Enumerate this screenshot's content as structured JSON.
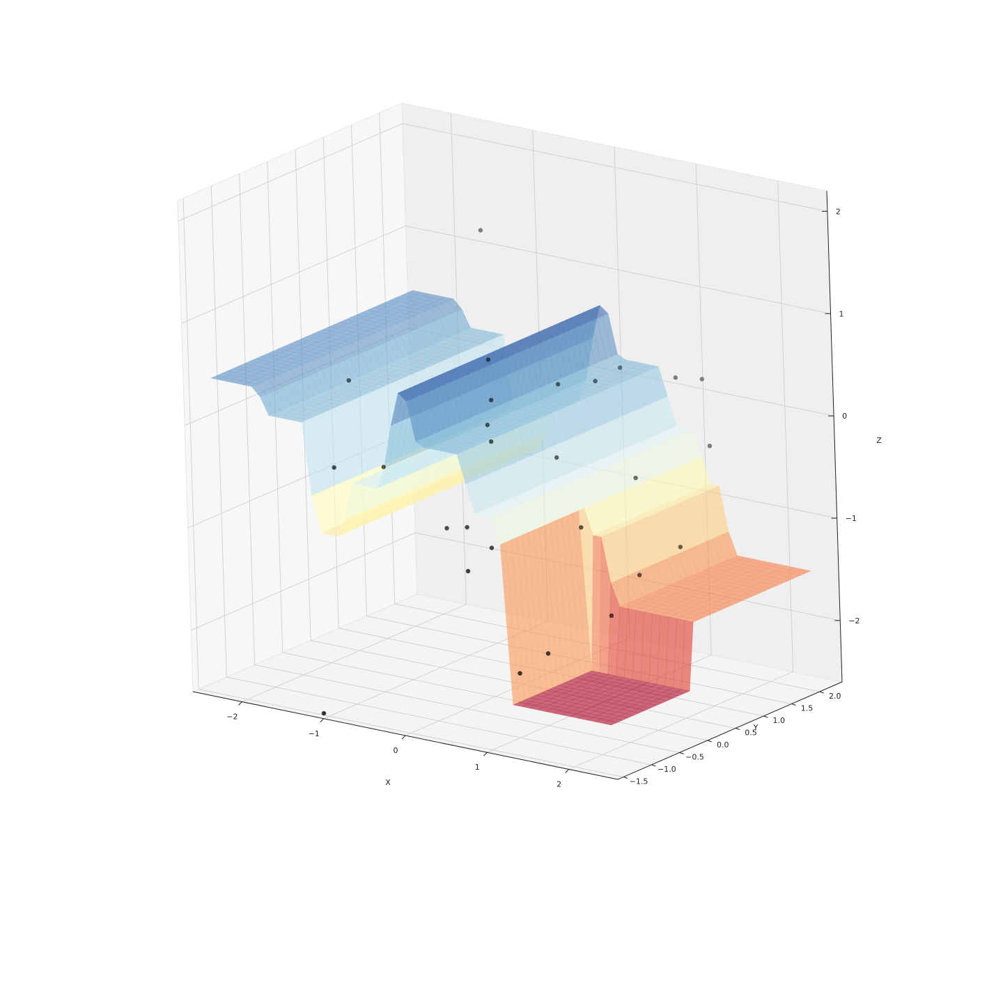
{
  "chart_data": {
    "type": "surface3d",
    "title": "",
    "xlabel": "X",
    "ylabel": "Y",
    "zlabel": "Z",
    "xlim": [
      -2.6,
      2.6
    ],
    "ylim": [
      -1.6,
      2.4
    ],
    "zlim": [
      -2.6,
      2.2
    ],
    "x_ticks": [
      -2,
      -1,
      0,
      1,
      2
    ],
    "y_ticks": [
      -1.5,
      -1.0,
      -0.5,
      0.0,
      0.5,
      1.0,
      1.5,
      2.0
    ],
    "z_ticks": [
      -2,
      -1,
      0,
      1,
      2
    ],
    "x_tick_labels": [
      "−2",
      "−1",
      "0",
      "1",
      "2"
    ],
    "y_tick_labels": [
      "−1.5",
      "−1.0",
      "−0.5",
      "0.0",
      "0.5",
      "1.0",
      "1.5",
      "2.0"
    ],
    "z_tick_labels": [
      "−2",
      "−1",
      "0",
      "1",
      "2"
    ],
    "grid": true,
    "colormap": "RdYlBu",
    "surface_alpha": 0.6,
    "surface": {
      "x_range": [
        -2.4,
        2.4
      ],
      "y_range": [
        -1.4,
        2.2
      ],
      "z_profile": [
        {
          "x": -2.4,
          "z": 0.45
        },
        {
          "x": -1.85,
          "z": 0.45
        },
        {
          "x": -1.7,
          "z": 0.2
        },
        {
          "x": -1.3,
          "z": 0.2
        },
        {
          "x": -1.15,
          "z": -0.85
        },
        {
          "x": -0.85,
          "z": -0.85
        },
        {
          "x": -0.7,
          "z": -0.3
        },
        {
          "x": -0.35,
          "z": -0.3
        },
        {
          "x": -0.2,
          "z": 0.35
        },
        {
          "x": -0.05,
          "z": 0.85
        },
        {
          "x": 0.08,
          "z": 0.25
        },
        {
          "x": 0.2,
          "z": 0.2
        },
        {
          "x": 0.65,
          "z": 0.2
        },
        {
          "x": 0.75,
          "z": -0.35
        },
        {
          "x": 1.05,
          "z": -0.35
        },
        {
          "x": 1.15,
          "z": -0.85
        },
        {
          "x": 1.3,
          "z": -0.85
        },
        {
          "x": 1.45,
          "z": -1.5
        },
        {
          "x": 2.4,
          "z": -1.5
        }
      ],
      "right_step": {
        "x_from": 1.15,
        "y_below": 0.05,
        "z": -2.15
      }
    },
    "points": [
      {
        "x": -1.4,
        "y": 2.0,
        "z": 1.25
      },
      {
        "x": -2.1,
        "y": 0.6,
        "z": 0.0
      },
      {
        "x": -0.55,
        "y": 0.85,
        "z": 0.4
      },
      {
        "x": 0.3,
        "y": 1.95,
        "z": 0.2
      },
      {
        "x": 0.55,
        "y": 1.15,
        "z": 0.3
      },
      {
        "x": 1.2,
        "y": 2.1,
        "z": 0.2
      },
      {
        "x": 1.05,
        "y": 1.85,
        "z": 0.25
      },
      {
        "x": -0.25,
        "y": 0.45,
        "z": 0.15
      },
      {
        "x": -0.2,
        "y": 0.3,
        "z": -0.05
      },
      {
        "x": 0.3,
        "y": 0.85,
        "z": 0.3
      },
      {
        "x": 0.05,
        "y": 0.0,
        "z": -0.1
      },
      {
        "x": 0.5,
        "y": 0.5,
        "z": -0.3
      },
      {
        "x": 1.55,
        "y": 1.7,
        "z": -0.3
      },
      {
        "x": 1.15,
        "y": 0.95,
        "z": -0.5
      },
      {
        "x": -1.25,
        "y": -0.05,
        "z": -0.55
      },
      {
        "x": -1.65,
        "y": -0.35,
        "z": -0.55
      },
      {
        "x": -0.25,
        "y": -0.4,
        "z": -0.9
      },
      {
        "x": 0.0,
        "y": -0.4,
        "z": -0.85
      },
      {
        "x": 0.4,
        "y": -0.55,
        "z": -0.95
      },
      {
        "x": 0.95,
        "y": 0.25,
        "z": -0.85
      },
      {
        "x": 1.85,
        "y": 0.7,
        "z": -1.0
      },
      {
        "x": 1.65,
        "y": 0.25,
        "z": -1.2
      },
      {
        "x": 1.5,
        "y": -0.05,
        "z": -1.55
      },
      {
        "x": 0.45,
        "y": -1.05,
        "z": -1.05
      },
      {
        "x": 1.3,
        "y": -0.9,
        "z": -1.75
      },
      {
        "x": 1.05,
        "y": -1.05,
        "z": -1.95
      },
      {
        "x": -1.1,
        "y": -1.45,
        "z": -2.6
      }
    ]
  }
}
